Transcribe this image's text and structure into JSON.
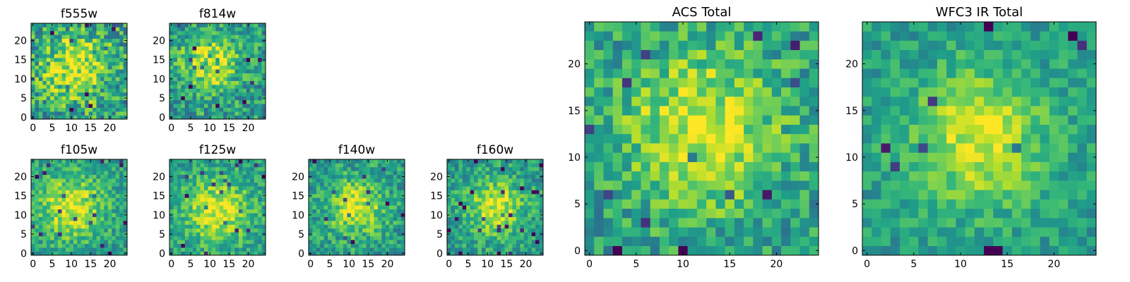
{
  "chart_data": [
    {
      "type": "heatmap",
      "title": "f555w",
      "grid_size": 25,
      "x_ticks": [
        "0",
        "5",
        "10",
        "15",
        "20"
      ],
      "y_ticks": [
        "0",
        "5",
        "10",
        "15",
        "20"
      ],
      "xlim": [
        -0.5,
        24.5
      ],
      "ylim": [
        -0.5,
        24.5
      ],
      "colormap": "viridis",
      "peak": [
        11,
        13
      ],
      "noise": 0.55,
      "width": 6,
      "seed": 11
    },
    {
      "type": "heatmap",
      "title": "f814w",
      "grid_size": 25,
      "x_ticks": [
        "0",
        "5",
        "10",
        "15",
        "20"
      ],
      "y_ticks": [
        "0",
        "5",
        "10",
        "15",
        "20"
      ],
      "xlim": [
        -0.5,
        24.5
      ],
      "ylim": [
        -0.5,
        24.5
      ],
      "colormap": "viridis",
      "peak": [
        10,
        14
      ],
      "noise": 0.45,
      "width": 5,
      "seed": 23
    },
    {
      "type": "heatmap",
      "title": "f105w",
      "grid_size": 25,
      "x_ticks": [
        "0",
        "5",
        "10",
        "15",
        "20"
      ],
      "y_ticks": [
        "0",
        "5",
        "10",
        "15",
        "20"
      ],
      "xlim": [
        -0.5,
        24.5
      ],
      "ylim": [
        -0.5,
        24.5
      ],
      "colormap": "viridis",
      "peak": [
        10,
        12
      ],
      "noise": 0.35,
      "width": 6,
      "seed": 37
    },
    {
      "type": "heatmap",
      "title": "f125w",
      "grid_size": 25,
      "x_ticks": [
        "0",
        "5",
        "10",
        "15",
        "20"
      ],
      "y_ticks": [
        "0",
        "5",
        "10",
        "15",
        "20"
      ],
      "xlim": [
        -0.5,
        24.5
      ],
      "ylim": [
        -0.5,
        24.5
      ],
      "colormap": "viridis",
      "peak": [
        12,
        11
      ],
      "noise": 0.35,
      "width": 6,
      "seed": 41
    },
    {
      "type": "heatmap",
      "title": "f140w",
      "grid_size": 25,
      "x_ticks": [
        "0",
        "5",
        "10",
        "15",
        "20"
      ],
      "y_ticks": [
        "0",
        "5",
        "10",
        "15",
        "20"
      ],
      "xlim": [
        -0.5,
        24.5
      ],
      "ylim": [
        -0.5,
        24.5
      ],
      "colormap": "viridis",
      "peak": [
        12,
        12
      ],
      "noise": 0.38,
      "width": 5,
      "seed": 53
    },
    {
      "type": "heatmap",
      "title": "f160w",
      "grid_size": 25,
      "x_ticks": [
        "0",
        "5",
        "10",
        "15",
        "20"
      ],
      "y_ticks": [
        "0",
        "5",
        "10",
        "15",
        "20"
      ],
      "xlim": [
        -0.5,
        24.5
      ],
      "ylim": [
        -0.5,
        24.5
      ],
      "colormap": "viridis",
      "peak": [
        12,
        12
      ],
      "noise": 0.36,
      "width": 5,
      "seed": 67
    },
    {
      "type": "heatmap",
      "title": "ACS Total",
      "grid_size": 25,
      "x_ticks": [
        "0",
        "5",
        "10",
        "15",
        "20"
      ],
      "y_ticks": [
        "0",
        "5",
        "10",
        "15",
        "20"
      ],
      "xlim": [
        -0.5,
        24.5
      ],
      "ylim": [
        -0.5,
        24.5
      ],
      "colormap": "viridis",
      "peak": [
        12,
        13
      ],
      "noise": 0.4,
      "width": 6,
      "seed": 79
    },
    {
      "type": "heatmap",
      "title": "WFC3 IR Total",
      "grid_size": 25,
      "x_ticks": [
        "0",
        "5",
        "10",
        "15",
        "20"
      ],
      "y_ticks": [
        "0",
        "5",
        "10",
        "15",
        "20"
      ],
      "xlim": [
        -0.5,
        24.5
      ],
      "ylim": [
        -0.5,
        24.5
      ],
      "colormap": "viridis",
      "peak": [
        12,
        12
      ],
      "noise": 0.28,
      "width": 5,
      "seed": 97
    }
  ]
}
